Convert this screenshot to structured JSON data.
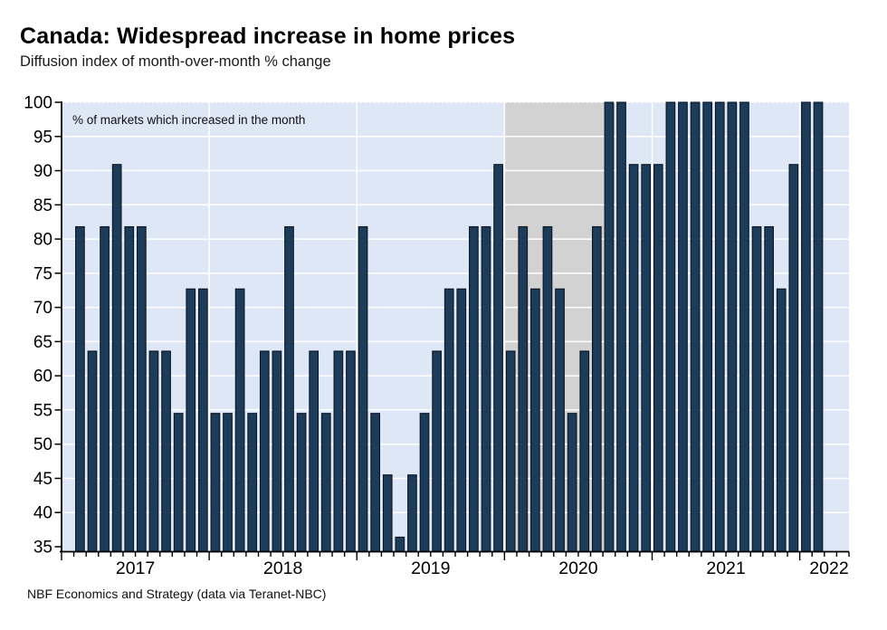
{
  "page": {
    "title": "Canada: Widespread increase in home prices",
    "subtitle": "Diffusion index of month-over-month % change",
    "footer": "NBF Economics and Strategy (data via Teranet-NBC)"
  },
  "chart_data": {
    "type": "bar",
    "title": "Canada: Widespread increase in home prices",
    "subtitle": "Diffusion index of month-over-month % change",
    "annotation": "% of markets which increased in the month",
    "source_note": "NBF Economics and Strategy (data via Teranet-NBC)",
    "ylabel": "",
    "xlabel": "",
    "ylim": [
      35,
      100
    ],
    "y_ticks": [
      35,
      40,
      45,
      50,
      55,
      60,
      65,
      70,
      75,
      80,
      85,
      90,
      95,
      100
    ],
    "x_domain_months": [
      "2017-01",
      "2022-05"
    ],
    "year_labels": [
      "2017",
      "2018",
      "2019",
      "2020",
      "2021",
      "2022"
    ],
    "grid": "white horizontal lines every 5, white vertical lines at year boundaries, dotted top border at 100",
    "legend_position": "none",
    "highlight_band": {
      "from": "2020-01",
      "to": "2020-10",
      "color": "#d2d2d2"
    },
    "colors": {
      "plot_bg": "#dee7f6",
      "bar_fill": "#1c3c5a",
      "bar_border": "#0b1623",
      "gridline": "#ffffff",
      "axis": "#000000",
      "band": "#d2d2d2",
      "text": "#000000"
    },
    "x": [
      "2017-02",
      "2017-03",
      "2017-04",
      "2017-05",
      "2017-06",
      "2017-07",
      "2017-08",
      "2017-09",
      "2017-10",
      "2017-11",
      "2017-12",
      "2018-01",
      "2018-02",
      "2018-03",
      "2018-04",
      "2018-05",
      "2018-06",
      "2018-07",
      "2018-08",
      "2018-09",
      "2018-10",
      "2018-11",
      "2018-12",
      "2019-01",
      "2019-02",
      "2019-03",
      "2019-04",
      "2019-05",
      "2019-06",
      "2019-07",
      "2019-08",
      "2019-09",
      "2019-10",
      "2019-11",
      "2019-12",
      "2020-01",
      "2020-02",
      "2020-03",
      "2020-04",
      "2020-05",
      "2020-06",
      "2020-07",
      "2020-08",
      "2020-09",
      "2020-10",
      "2020-11",
      "2020-12",
      "2021-01",
      "2021-02",
      "2021-03",
      "2021-04",
      "2021-05",
      "2021-06",
      "2021-07",
      "2021-08",
      "2021-09",
      "2021-10",
      "2021-11",
      "2021-12",
      "2022-01",
      "2022-02"
    ],
    "values": [
      81.8,
      63.6,
      81.8,
      90.9,
      81.8,
      81.8,
      63.6,
      63.6,
      54.5,
      72.7,
      72.7,
      54.5,
      54.5,
      72.7,
      54.5,
      63.6,
      63.6,
      81.8,
      54.5,
      63.6,
      54.5,
      63.6,
      63.6,
      81.8,
      54.5,
      45.5,
      36.4,
      45.5,
      54.5,
      63.6,
      72.7,
      72.7,
      81.8,
      81.8,
      90.9,
      63.6,
      81.8,
      72.7,
      81.8,
      72.7,
      54.5,
      63.6,
      81.8,
      100,
      100,
      90.9,
      90.9,
      90.9,
      100,
      100,
      100,
      100,
      100,
      100,
      100,
      81.8,
      81.8,
      72.7,
      90.9,
      100,
      100
    ]
  }
}
